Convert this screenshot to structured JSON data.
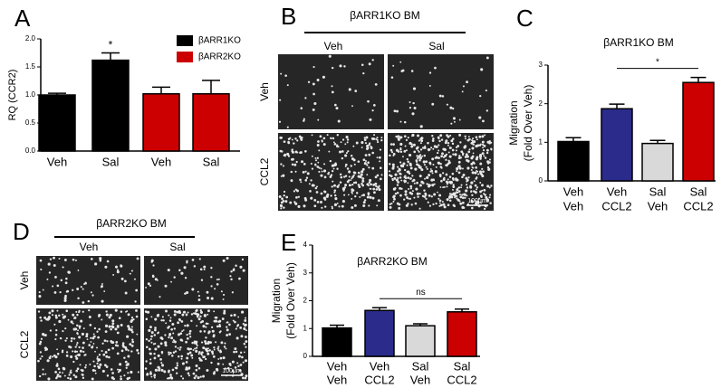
{
  "panel_labels": [
    "A",
    "B",
    "C",
    "D",
    "E"
  ],
  "chart_data": [
    {
      "type": "bar",
      "ylabel": "RQ (CCR2)",
      "categories": [
        "Veh",
        "Sal",
        "Veh",
        "Sal"
      ],
      "series": [
        {
          "name": "βARR1KO",
          "color": "#000000",
          "values": [
            1.0,
            1.62,
            null,
            null
          ],
          "errors": [
            0.03,
            0.13,
            null,
            null
          ]
        },
        {
          "name": "βARR2KO",
          "color": "#cc0000",
          "values": [
            null,
            null,
            1.02,
            1.02
          ],
          "errors": [
            null,
            null,
            0.12,
            0.24
          ]
        }
      ],
      "ylim": [
        0,
        2.0
      ],
      "yticks": [
        {
          "value": 0,
          "label": "0.0"
        },
        {
          "value": 0.5,
          "label": "0.5"
        },
        {
          "value": 1.0,
          "label": "1.0"
        },
        {
          "value": 1.5,
          "label": "1.5"
        },
        {
          "value": 2.0,
          "label": "2.0"
        }
      ],
      "annotation": "*",
      "legend": "upper right"
    },
    {
      "type": "bar",
      "title": "βARR1KO BM",
      "ylabel": [
        "Migration",
        "(Fold Over Veh)"
      ],
      "categories": [
        [
          "Veh",
          "Veh"
        ],
        [
          "Veh",
          "CCL2"
        ],
        [
          "Sal",
          "Veh"
        ],
        [
          "Sal",
          "CCL2"
        ]
      ],
      "values": [
        1.02,
        1.87,
        0.97,
        2.55
      ],
      "errors": [
        0.1,
        0.12,
        0.08,
        0.13
      ],
      "colors": [
        "#000000",
        "#2b2b8c",
        "#d9d9d9",
        "#cc0000"
      ],
      "ylim": [
        0,
        3
      ],
      "yticks": [
        0,
        1,
        2,
        3
      ],
      "annotation": "*"
    },
    {
      "type": "bar",
      "title": "βARR2KO BM",
      "ylabel": [
        "Migration",
        "(Fold Over Veh)"
      ],
      "categories": [
        [
          "Veh",
          "Veh"
        ],
        [
          "Veh",
          "CCL2"
        ],
        [
          "Sal",
          "Veh"
        ],
        [
          "Sal",
          "CCL2"
        ]
      ],
      "values": [
        1.02,
        1.65,
        1.1,
        1.6
      ],
      "errors": [
        0.1,
        0.1,
        0.07,
        0.1
      ],
      "colors": [
        "#000000",
        "#2b2b8c",
        "#d9d9d9",
        "#cc0000"
      ],
      "ylim": [
        0,
        4
      ],
      "yticks": [
        0,
        1,
        2,
        3,
        4
      ],
      "annotation": "ns"
    }
  ],
  "micrographs": [
    {
      "title": "βARR1KO BM",
      "columns": [
        "Veh",
        "Sal"
      ],
      "rows": [
        "Veh",
        "CCL2"
      ],
      "scale_bar": "100μm"
    },
    {
      "title": "βARR2KO BM",
      "columns": [
        "Veh",
        "Sal"
      ],
      "rows": [
        "Veh",
        "CCL2"
      ],
      "scale_bar": "100μm"
    }
  ]
}
